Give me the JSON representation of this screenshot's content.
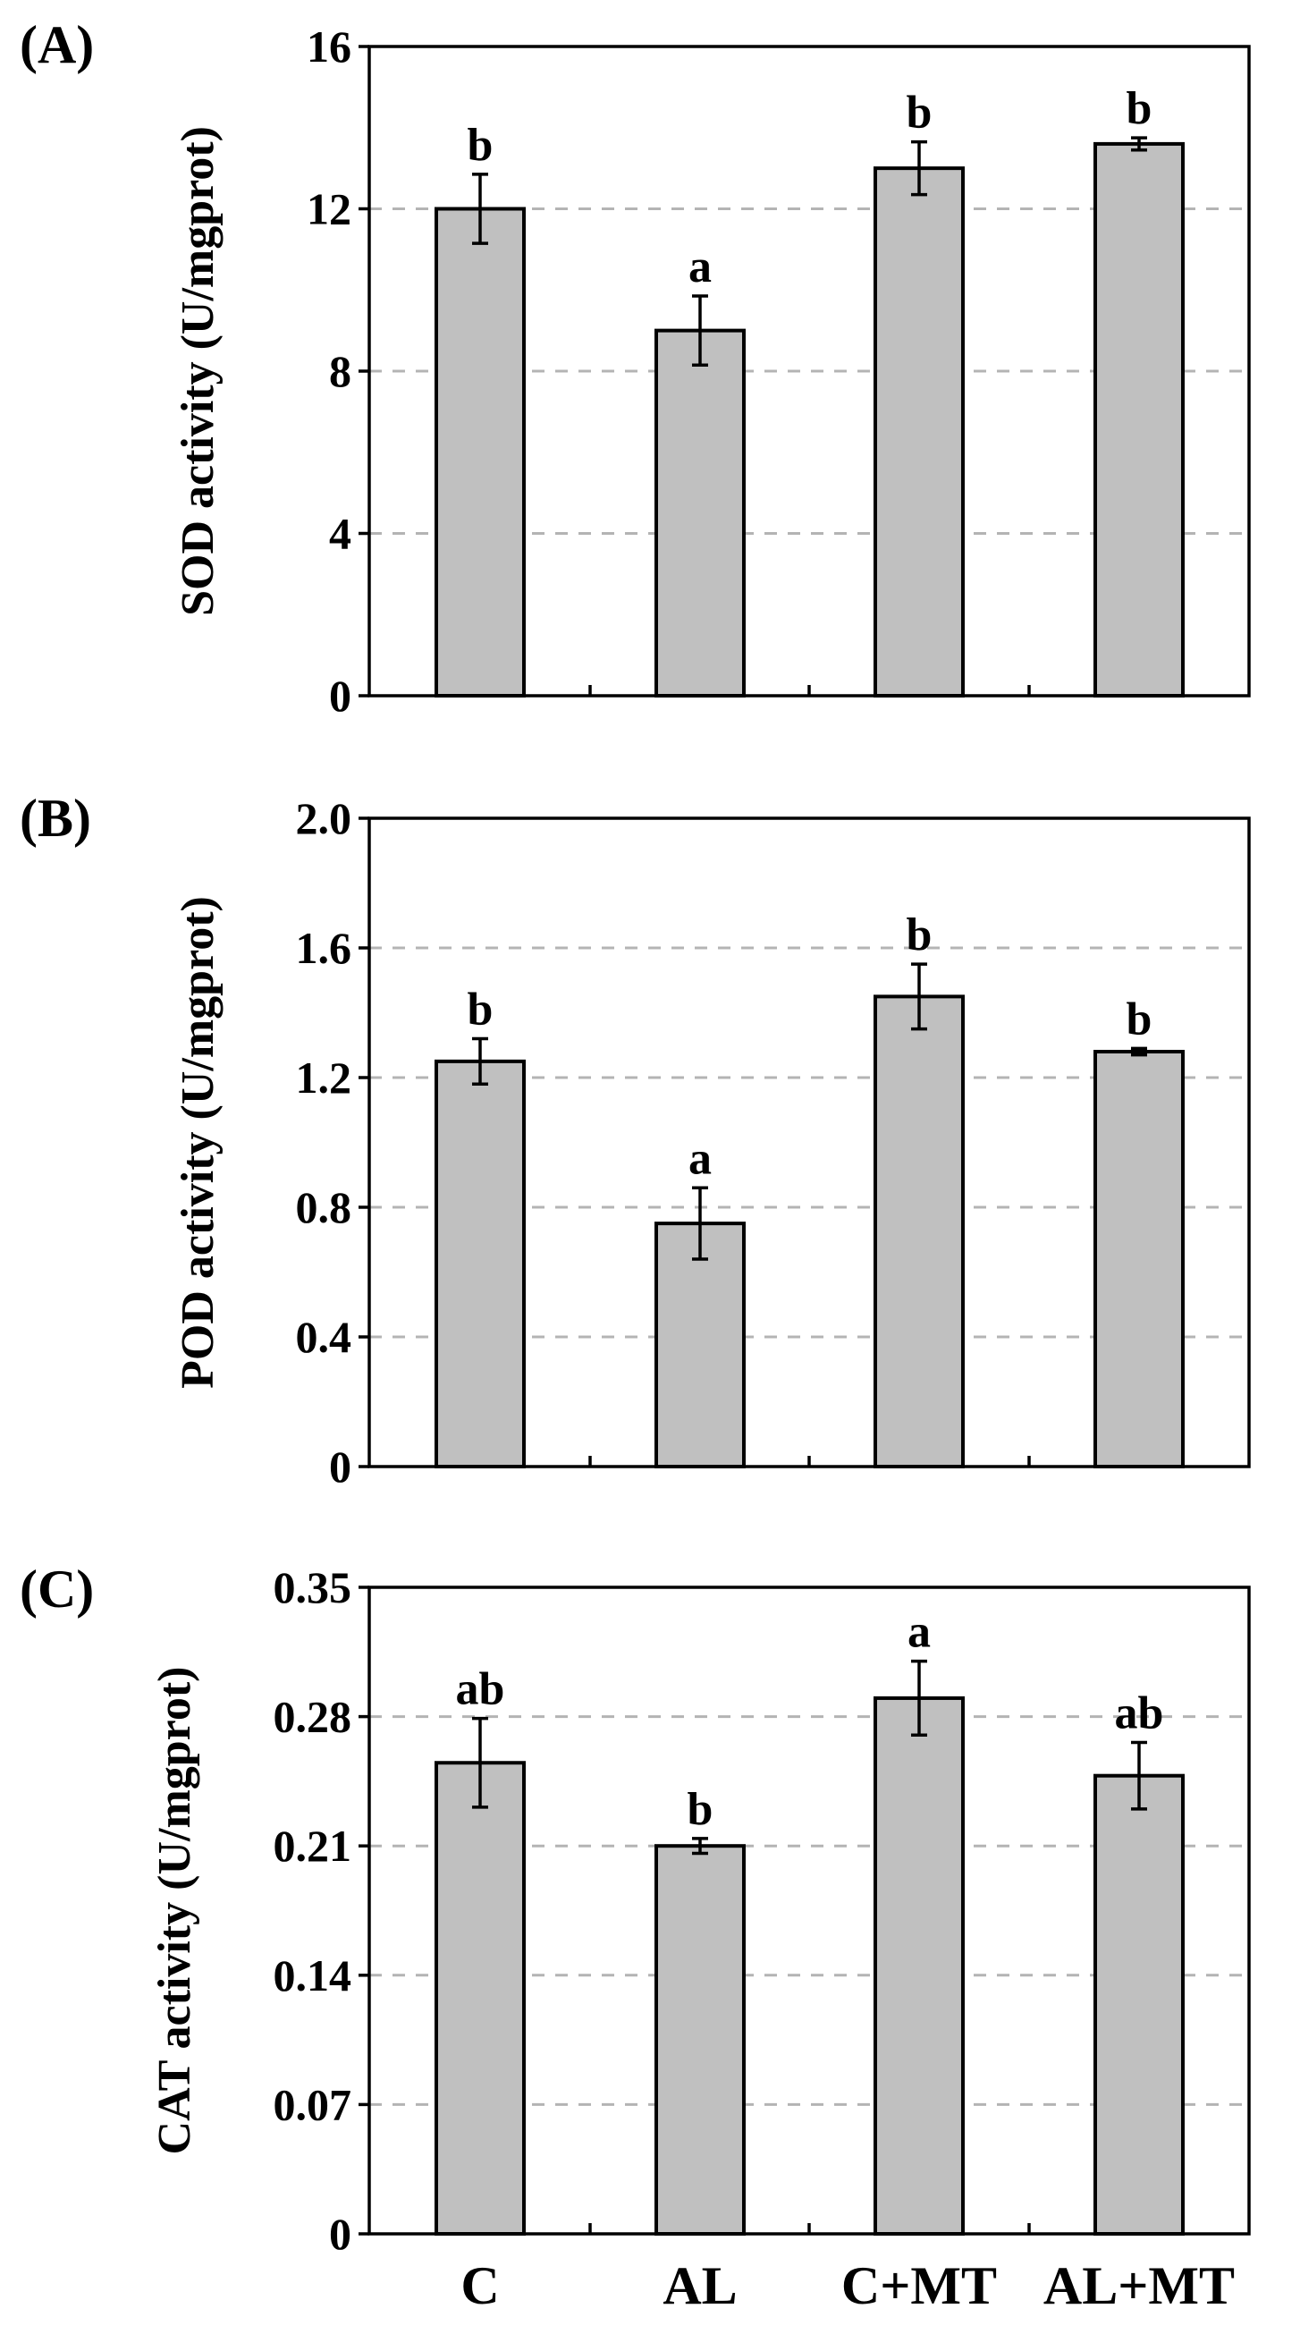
{
  "chart_data": [
    {
      "panel": "(A)",
      "type": "bar",
      "categories": [
        "C",
        "AL",
        "C+MT",
        "AL+MT"
      ],
      "values": [
        12.0,
        9.0,
        13.0,
        13.6
      ],
      "errors": [
        0.85,
        0.85,
        0.65,
        0.15
      ],
      "significance": [
        "b",
        "a",
        "b",
        "b"
      ],
      "ylabel": "SOD activity (U/mgprot)",
      "ylim": [
        0,
        16
      ],
      "yticks": [
        "0",
        "4",
        "8",
        "12",
        "16"
      ],
      "ytick_values": [
        0,
        4,
        8,
        12,
        16
      ],
      "grid": "dashed horizontal"
    },
    {
      "panel": "(B)",
      "type": "bar",
      "categories": [
        "C",
        "AL",
        "C+MT",
        "AL+MT"
      ],
      "values": [
        1.25,
        0.75,
        1.45,
        1.28
      ],
      "errors": [
        0.07,
        0.11,
        0.1,
        0.01
      ],
      "significance": [
        "b",
        "a",
        "b",
        "b"
      ],
      "ylabel": "POD activity (U/mgprot)",
      "ylim": [
        0,
        2.0
      ],
      "yticks": [
        "0",
        "0.4",
        "0.8",
        "1.2",
        "1.6",
        "2.0"
      ],
      "ytick_values": [
        0,
        0.4,
        0.8,
        1.2,
        1.6,
        2.0
      ],
      "grid": "dashed horizontal"
    },
    {
      "panel": "(C)",
      "type": "bar",
      "categories": [
        "C",
        "AL",
        "C+MT",
        "AL+MT"
      ],
      "values": [
        0.255,
        0.21,
        0.29,
        0.248
      ],
      "errors": [
        0.024,
        0.004,
        0.02,
        0.018
      ],
      "significance": [
        "ab",
        "b",
        "a",
        "ab"
      ],
      "ylabel": "CAT activity (U/mgprot)",
      "ylim": [
        0,
        0.35
      ],
      "yticks": [
        "0",
        "0.07",
        "0.14",
        "0.21",
        "0.28",
        "0.35"
      ],
      "ytick_values": [
        0,
        0.07,
        0.14,
        0.21,
        0.28,
        0.35
      ],
      "grid": "dashed horizontal"
    }
  ],
  "x_categories": [
    "C",
    "AL",
    "C+MT",
    "AL+MT"
  ],
  "colors": {
    "bar_fill": "#c0c0c0",
    "bar_edge": "#000000",
    "grid": "#b4b4b4",
    "axis": "#000000"
  }
}
